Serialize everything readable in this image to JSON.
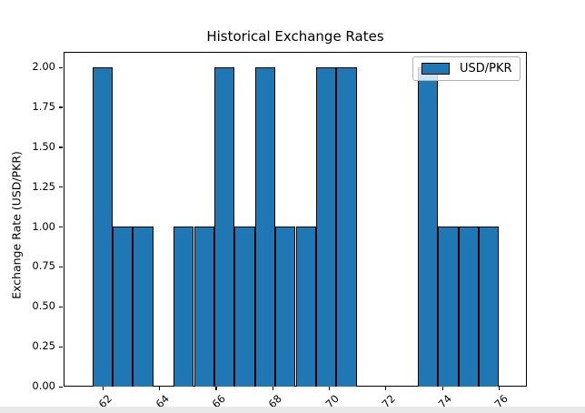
{
  "chart_data": {
    "type": "bar",
    "title": "Historical Exchange Rates",
    "ylabel": "Exchange Rate (USD/PKR)",
    "xlabel": "",
    "legend_label": "USD/PKR",
    "legend_position": "upper right",
    "grid": false,
    "ylim": [
      0.0,
      2.1
    ],
    "y_ticks": [
      0.0,
      0.25,
      0.5,
      0.75,
      1.0,
      1.25,
      1.5,
      1.75,
      2.0
    ],
    "y_tick_labels": [
      "0.00",
      "0.25",
      "0.50",
      "0.75",
      "1.00",
      "1.25",
      "1.50",
      "1.75",
      "2.00"
    ],
    "x_tick_labels": [
      "-62",
      "-64",
      "-66",
      "-68",
      "-70",
      "-72",
      "-74",
      "-76"
    ],
    "x_tick_rotation": 45,
    "n_slots": 20,
    "values": [
      2,
      1,
      1,
      null,
      1,
      1,
      2,
      1,
      2,
      1,
      1,
      2,
      2,
      null,
      null,
      null,
      2,
      1,
      1,
      1
    ],
    "bar_color": "#1f77b4",
    "bar_edge_color": "#000000"
  },
  "colors": {
    "bar_fill": "#1f77b4",
    "bar_edge": "#000000",
    "figure_background": "#ffffff",
    "outside_background": "#e9e9e9",
    "legend_border": "#b2b2b2"
  }
}
